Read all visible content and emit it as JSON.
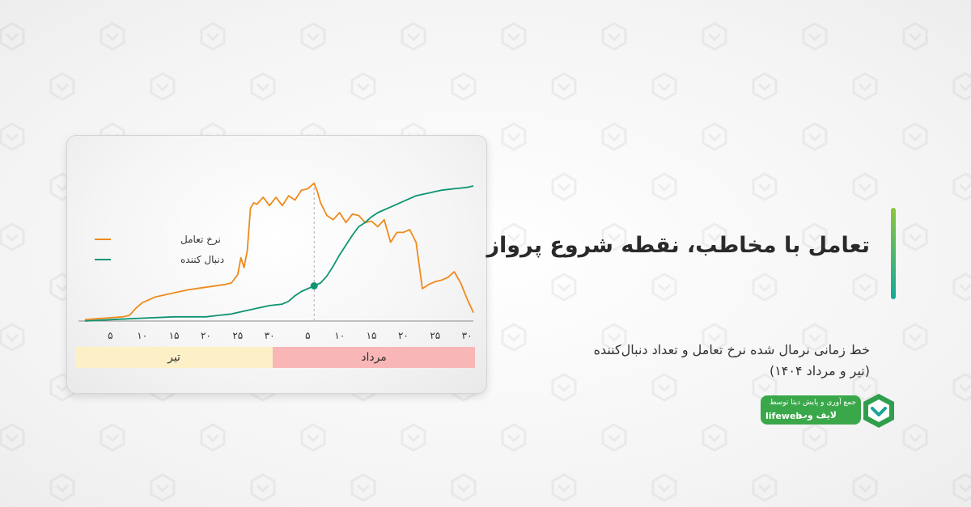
{
  "title": "تعامل با مخاطب، نقطه شروع پرواز",
  "subtitle_line1": "خط زمانی نرمال شده نرخ تعامل و تعداد دنبال‌کننده",
  "subtitle_line2": "(تیر و مرداد ۱۴۰۴)",
  "credit": {
    "line1": "جمع آوری و پایش دیتا توسط",
    "brand_fa": "لایف وب",
    "brand_en": "lifeweb"
  },
  "colors": {
    "engagement": "#f08a1c",
    "followers": "#0e9473",
    "tir_band": "#fdf0c6",
    "mordad_band": "#f8b6b6",
    "accent": "#3aa84a"
  },
  "chart_data": {
    "type": "line",
    "title": "",
    "xlabel": "",
    "ylabel": "",
    "ylim": [
      0,
      1
    ],
    "grid": false,
    "legend_position": "top-left",
    "tick_labels": [
      "۵",
      "۱۰",
      "۱۵",
      "۲۰",
      "۲۵",
      "۳۰",
      "۵",
      "۱۰",
      "۱۵",
      "۲۰",
      "۲۵",
      "۳۰"
    ],
    "tick_days": [
      5,
      10,
      15,
      20,
      25,
      30,
      36,
      41,
      46,
      51,
      56,
      61
    ],
    "months": [
      {
        "label": "تیر",
        "start_day": 1,
        "end_day": 31
      },
      {
        "label": "مرداد",
        "start_day": 31,
        "end_day": 62
      }
    ],
    "marker": {
      "day": 37,
      "series": "دنبال کننده"
    },
    "series": [
      {
        "name": "نرخ تعامل",
        "color": "#f08a1c",
        "x": [
          1,
          4,
          7,
          8,
          9,
          10,
          12,
          14,
          17,
          20,
          23,
          24,
          25,
          25.5,
          26,
          26.5,
          27,
          27.5,
          28,
          29,
          30,
          31,
          32,
          33,
          34,
          35,
          36,
          37,
          37.5,
          38,
          39,
          40,
          41,
          42,
          43,
          44,
          45,
          46,
          47,
          48,
          49,
          50,
          51,
          52,
          53,
          54,
          55,
          56,
          57,
          58,
          59,
          60,
          61,
          62
        ],
        "y": [
          0.01,
          0.02,
          0.03,
          0.04,
          0.09,
          0.13,
          0.17,
          0.19,
          0.22,
          0.24,
          0.26,
          0.27,
          0.33,
          0.45,
          0.38,
          0.5,
          0.8,
          0.84,
          0.83,
          0.88,
          0.82,
          0.88,
          0.82,
          0.89,
          0.86,
          0.93,
          0.94,
          0.98,
          0.92,
          0.84,
          0.75,
          0.72,
          0.77,
          0.7,
          0.76,
          0.75,
          0.7,
          0.71,
          0.67,
          0.72,
          0.56,
          0.63,
          0.63,
          0.65,
          0.56,
          0.23,
          0.26,
          0.28,
          0.29,
          0.31,
          0.35,
          0.27,
          0.16,
          0.06
        ]
      },
      {
        "name": "دنبال کننده",
        "color": "#0e9473",
        "x": [
          1,
          5,
          10,
          15,
          20,
          22,
          24,
          26,
          28,
          30,
          32,
          33,
          34,
          35,
          36,
          37,
          38,
          39,
          40,
          41,
          42,
          43,
          44,
          45,
          46,
          47,
          48,
          49,
          50,
          51,
          52,
          53,
          54,
          55,
          56,
          57,
          58,
          59,
          60,
          61,
          62
        ],
        "y": [
          0,
          0.01,
          0.02,
          0.03,
          0.03,
          0.04,
          0.05,
          0.07,
          0.09,
          0.11,
          0.12,
          0.14,
          0.18,
          0.21,
          0.23,
          0.25,
          0.27,
          0.32,
          0.39,
          0.47,
          0.54,
          0.61,
          0.67,
          0.7,
          0.74,
          0.77,
          0.79,
          0.81,
          0.83,
          0.85,
          0.87,
          0.89,
          0.9,
          0.91,
          0.92,
          0.93,
          0.935,
          0.94,
          0.945,
          0.95,
          0.96
        ]
      }
    ]
  }
}
